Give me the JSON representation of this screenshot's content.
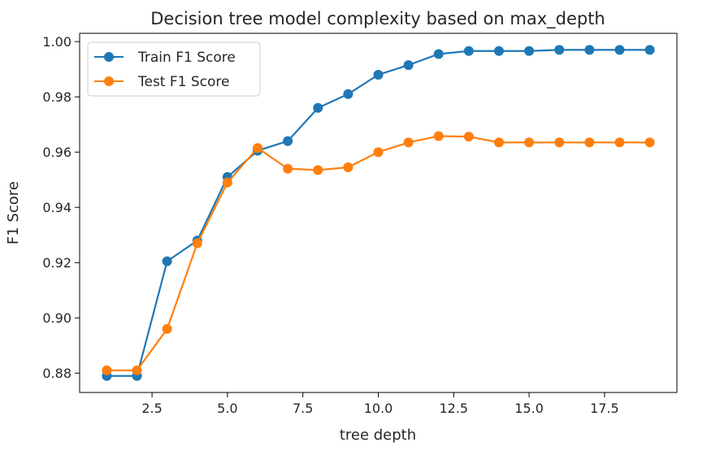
{
  "chart_data": {
    "type": "line",
    "title": "Decision tree model complexity based on max_depth",
    "xlabel": "tree depth",
    "ylabel": "F1 Score",
    "xlim": [
      0.1,
      19.9
    ],
    "ylim": [
      0.873,
      1.003
    ],
    "xticks": [
      2.5,
      5.0,
      7.5,
      10.0,
      12.5,
      15.0,
      17.5
    ],
    "xtick_labels": [
      "2.5",
      "5.0",
      "7.5",
      "10.0",
      "12.5",
      "15.0",
      "17.5"
    ],
    "yticks": [
      0.88,
      0.9,
      0.92,
      0.94,
      0.96,
      0.98,
      1.0
    ],
    "ytick_labels": [
      "0.88",
      "0.90",
      "0.92",
      "0.94",
      "0.96",
      "0.98",
      "1.00"
    ],
    "grid": false,
    "legend_position": "top-left",
    "x": [
      1,
      2,
      3,
      4,
      5,
      6,
      7,
      8,
      9,
      10,
      11,
      12,
      13,
      14,
      15,
      16,
      17,
      18,
      19
    ],
    "series": [
      {
        "name": "Train F1 Score",
        "color": "#1f77b4",
        "values": [
          0.879,
          0.879,
          0.9205,
          0.928,
          0.951,
          0.9605,
          0.964,
          0.976,
          0.981,
          0.988,
          0.9915,
          0.9955,
          0.9966,
          0.9966,
          0.9966,
          0.997,
          0.997,
          0.997,
          0.997
        ]
      },
      {
        "name": "Test F1 Score",
        "color": "#ff7f0e",
        "values": [
          0.881,
          0.881,
          0.896,
          0.927,
          0.949,
          0.9615,
          0.954,
          0.9535,
          0.9545,
          0.96,
          0.9635,
          0.9658,
          0.9656,
          0.9635,
          0.9635,
          0.9635,
          0.9635,
          0.9635,
          0.9635
        ]
      }
    ]
  }
}
